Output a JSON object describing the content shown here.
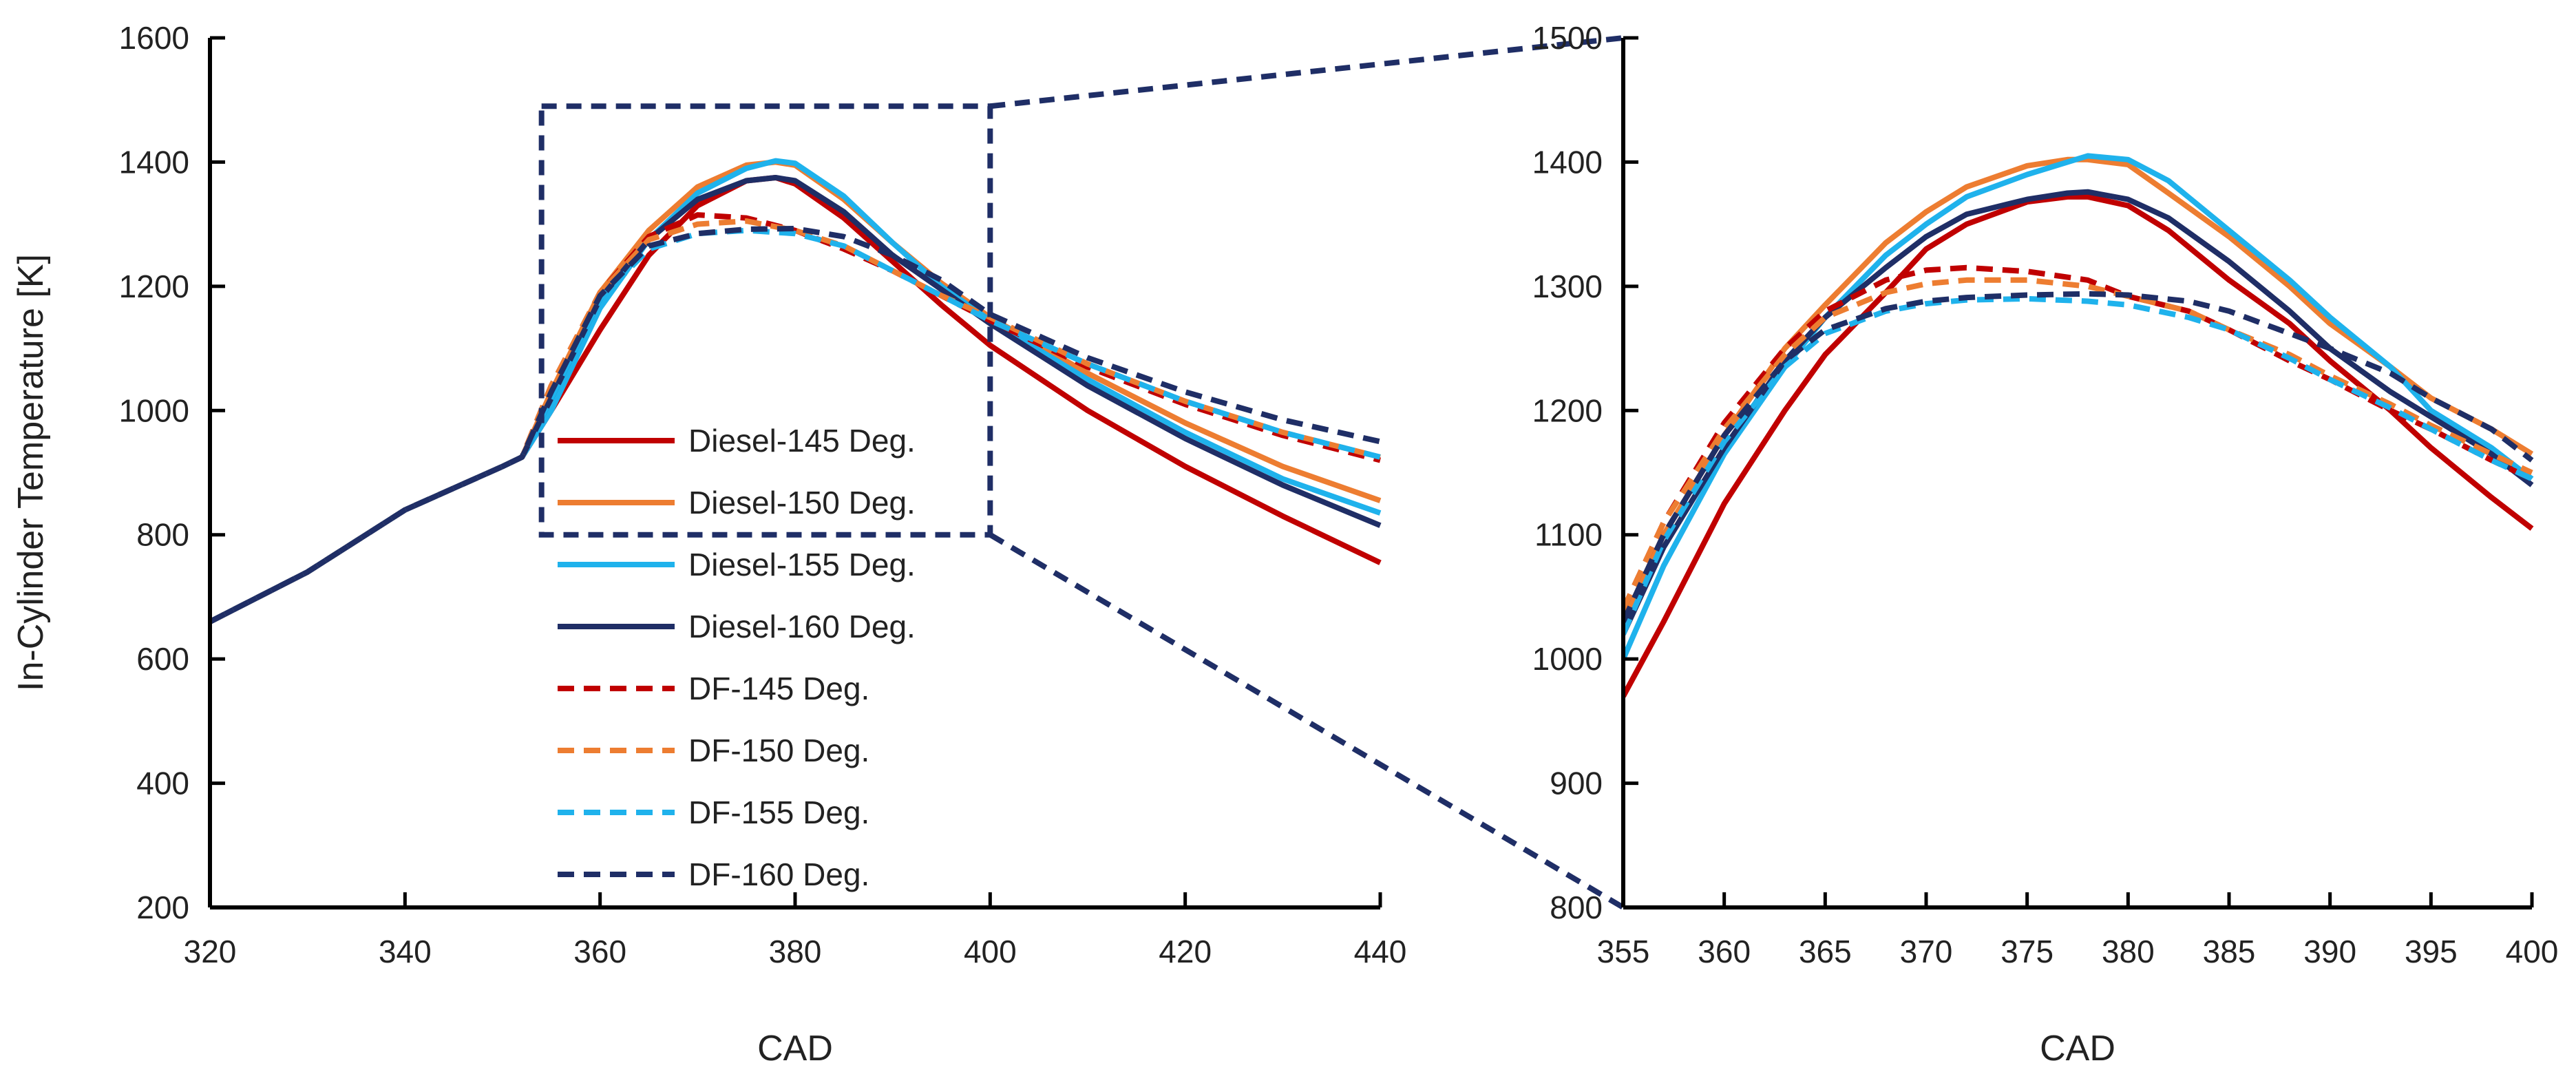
{
  "chart_data": [
    {
      "id": "full",
      "type": "line",
      "xlabel": "CAD",
      "ylabel": "In-Cylinder Temperature [K]",
      "xlim": [
        320,
        440
      ],
      "ylim": [
        200,
        1600
      ],
      "xticks": [
        320,
        340,
        360,
        380,
        400,
        420,
        440
      ],
      "yticks": [
        200,
        400,
        600,
        800,
        1000,
        1200,
        1400,
        1600
      ],
      "zoom_box": {
        "x": [
          354,
          400
        ],
        "y": [
          800,
          1490
        ]
      },
      "series": [
        {
          "name": "Diesel-145 Deg.",
          "color": "#c00000",
          "dash": false,
          "x": [
            320,
            330,
            340,
            350,
            352,
            355,
            360,
            365,
            370,
            375,
            378,
            380,
            385,
            390,
            395,
            400,
            410,
            420,
            430,
            440
          ],
          "y": [
            660,
            740,
            840,
            910,
            925,
            1000,
            1130,
            1250,
            1330,
            1370,
            1375,
            1365,
            1310,
            1240,
            1170,
            1105,
            1000,
            910,
            830,
            755
          ]
        },
        {
          "name": "Diesel-150 Deg.",
          "color": "#ed7d31",
          "dash": false,
          "x": [
            320,
            330,
            340,
            350,
            352,
            355,
            360,
            365,
            370,
            375,
            378,
            380,
            385,
            390,
            395,
            400,
            410,
            420,
            430,
            440
          ],
          "y": [
            660,
            740,
            840,
            910,
            925,
            1030,
            1190,
            1290,
            1360,
            1395,
            1400,
            1395,
            1340,
            1270,
            1205,
            1150,
            1060,
            980,
            910,
            855
          ]
        },
        {
          "name": "Diesel-155 Deg.",
          "color": "#1fb2ec",
          "dash": false,
          "x": [
            320,
            330,
            340,
            350,
            352,
            355,
            360,
            365,
            370,
            375,
            378,
            380,
            385,
            390,
            395,
            400,
            410,
            420,
            430,
            440
          ],
          "y": [
            660,
            740,
            840,
            910,
            925,
            1000,
            1165,
            1275,
            1350,
            1390,
            1402,
            1398,
            1345,
            1270,
            1200,
            1145,
            1050,
            965,
            890,
            835
          ]
        },
        {
          "name": "Diesel-160 Deg.",
          "color": "#1f2e66",
          "dash": false,
          "x": [
            320,
            330,
            340,
            350,
            352,
            355,
            360,
            365,
            370,
            375,
            378,
            380,
            385,
            390,
            395,
            400,
            410,
            420,
            430,
            440
          ],
          "y": [
            660,
            740,
            840,
            910,
            925,
            1020,
            1180,
            1275,
            1340,
            1370,
            1375,
            1370,
            1320,
            1250,
            1195,
            1140,
            1040,
            955,
            880,
            815
          ]
        },
        {
          "name": "DF-145 Deg.",
          "color": "#c00000",
          "dash": true,
          "x": [
            320,
            330,
            340,
            350,
            352,
            355,
            360,
            365,
            370,
            375,
            380,
            385,
            390,
            395,
            400,
            410,
            420,
            430,
            440
          ],
          "y": [
            660,
            740,
            840,
            910,
            925,
            1040,
            1190,
            1280,
            1315,
            1310,
            1290,
            1260,
            1225,
            1185,
            1145,
            1070,
            1010,
            960,
            920
          ]
        },
        {
          "name": "DF-150 Deg.",
          "color": "#ed7d31",
          "dash": true,
          "x": [
            320,
            330,
            340,
            350,
            352,
            355,
            360,
            365,
            370,
            375,
            380,
            385,
            390,
            395,
            400,
            410,
            420,
            430,
            440
          ],
          "y": [
            660,
            740,
            840,
            910,
            925,
            1040,
            1190,
            1275,
            1300,
            1305,
            1290,
            1265,
            1225,
            1185,
            1150,
            1075,
            1015,
            965,
            925
          ]
        },
        {
          "name": "DF-155 Deg.",
          "color": "#1fb2ec",
          "dash": true,
          "x": [
            320,
            330,
            340,
            350,
            352,
            355,
            360,
            365,
            370,
            375,
            380,
            385,
            390,
            395,
            400,
            410,
            420,
            430,
            440
          ],
          "y": [
            660,
            740,
            840,
            910,
            925,
            1020,
            1180,
            1260,
            1285,
            1290,
            1285,
            1265,
            1225,
            1185,
            1145,
            1075,
            1015,
            965,
            925
          ]
        },
        {
          "name": "DF-160 Deg.",
          "color": "#1f2e66",
          "dash": true,
          "x": [
            320,
            330,
            340,
            350,
            352,
            355,
            360,
            365,
            370,
            375,
            380,
            385,
            390,
            395,
            400,
            410,
            420,
            430,
            440
          ],
          "y": [
            660,
            740,
            840,
            910,
            925,
            1030,
            1185,
            1265,
            1285,
            1292,
            1293,
            1280,
            1250,
            1210,
            1155,
            1085,
            1030,
            985,
            950
          ]
        }
      ]
    },
    {
      "id": "zoom",
      "type": "line",
      "xlabel": "CAD",
      "ylabel": "",
      "xlim": [
        355,
        400
      ],
      "ylim": [
        800,
        1500
      ],
      "xticks": [
        355,
        360,
        365,
        370,
        375,
        380,
        385,
        390,
        395,
        400
      ],
      "yticks": [
        800,
        900,
        1000,
        1100,
        1200,
        1300,
        1400,
        1500
      ],
      "series": [
        {
          "name": "Diesel-145 Deg.",
          "color": "#c00000",
          "dash": false,
          "x": [
            355,
            357,
            360,
            363,
            365,
            368,
            370,
            372,
            375,
            377,
            378,
            380,
            382,
            385,
            388,
            390,
            393,
            395,
            398,
            400
          ],
          "y": [
            970,
            1030,
            1125,
            1200,
            1245,
            1295,
            1330,
            1350,
            1368,
            1372,
            1372,
            1365,
            1345,
            1305,
            1270,
            1240,
            1200,
            1170,
            1130,
            1105
          ]
        },
        {
          "name": "Diesel-150 Deg.",
          "color": "#ed7d31",
          "dash": false,
          "x": [
            355,
            357,
            360,
            363,
            365,
            368,
            370,
            372,
            375,
            377,
            378,
            380,
            382,
            385,
            388,
            390,
            393,
            395,
            398,
            400
          ],
          "y": [
            1030,
            1100,
            1180,
            1250,
            1285,
            1335,
            1360,
            1380,
            1397,
            1402,
            1402,
            1398,
            1375,
            1340,
            1300,
            1270,
            1235,
            1210,
            1185,
            1165
          ]
        },
        {
          "name": "Diesel-155 Deg.",
          "color": "#1fb2ec",
          "dash": false,
          "x": [
            355,
            357,
            360,
            363,
            365,
            368,
            370,
            372,
            375,
            377,
            378,
            380,
            382,
            385,
            388,
            390,
            393,
            395,
            398,
            400
          ],
          "y": [
            1000,
            1075,
            1165,
            1235,
            1275,
            1325,
            1350,
            1372,
            1390,
            1400,
            1405,
            1402,
            1385,
            1345,
            1305,
            1275,
            1235,
            1200,
            1170,
            1145
          ]
        },
        {
          "name": "Diesel-160 Deg.",
          "color": "#1f2e66",
          "dash": false,
          "x": [
            355,
            357,
            360,
            363,
            365,
            368,
            370,
            372,
            375,
            377,
            378,
            380,
            382,
            385,
            388,
            390,
            393,
            395,
            398,
            400
          ],
          "y": [
            1020,
            1090,
            1170,
            1240,
            1275,
            1315,
            1340,
            1358,
            1370,
            1375,
            1376,
            1370,
            1355,
            1320,
            1280,
            1250,
            1215,
            1195,
            1165,
            1140
          ]
        },
        {
          "name": "DF-145 Deg.",
          "color": "#c00000",
          "dash": true,
          "x": [
            355,
            357,
            360,
            363,
            365,
            368,
            370,
            372,
            375,
            378,
            380,
            383,
            385,
            388,
            390,
            393,
            395,
            398,
            400
          ],
          "y": [
            1040,
            1110,
            1190,
            1250,
            1280,
            1305,
            1313,
            1315,
            1312,
            1305,
            1292,
            1280,
            1265,
            1240,
            1225,
            1200,
            1185,
            1160,
            1145
          ]
        },
        {
          "name": "DF-150 Deg.",
          "color": "#ed7d31",
          "dash": true,
          "x": [
            355,
            357,
            360,
            363,
            365,
            368,
            370,
            372,
            375,
            378,
            380,
            383,
            385,
            388,
            390,
            393,
            395,
            398,
            400
          ],
          "y": [
            1040,
            1110,
            1185,
            1245,
            1275,
            1295,
            1302,
            1305,
            1305,
            1300,
            1292,
            1280,
            1265,
            1245,
            1228,
            1205,
            1188,
            1165,
            1150
          ]
        },
        {
          "name": "DF-155 Deg.",
          "color": "#1fb2ec",
          "dash": true,
          "x": [
            355,
            357,
            360,
            363,
            365,
            368,
            370,
            372,
            375,
            378,
            380,
            383,
            385,
            388,
            390,
            393,
            395,
            398,
            400
          ],
          "y": [
            1020,
            1095,
            1175,
            1235,
            1262,
            1280,
            1286,
            1289,
            1290,
            1288,
            1285,
            1275,
            1265,
            1242,
            1225,
            1202,
            1185,
            1160,
            1145
          ]
        },
        {
          "name": "DF-160 Deg.",
          "color": "#1f2e66",
          "dash": true,
          "x": [
            355,
            357,
            360,
            363,
            365,
            368,
            370,
            372,
            375,
            378,
            380,
            383,
            385,
            388,
            390,
            393,
            395,
            398,
            400
          ],
          "y": [
            1030,
            1100,
            1180,
            1240,
            1265,
            1282,
            1288,
            1291,
            1293,
            1294,
            1293,
            1288,
            1280,
            1262,
            1250,
            1230,
            1210,
            1185,
            1160
          ]
        }
      ]
    }
  ]
}
